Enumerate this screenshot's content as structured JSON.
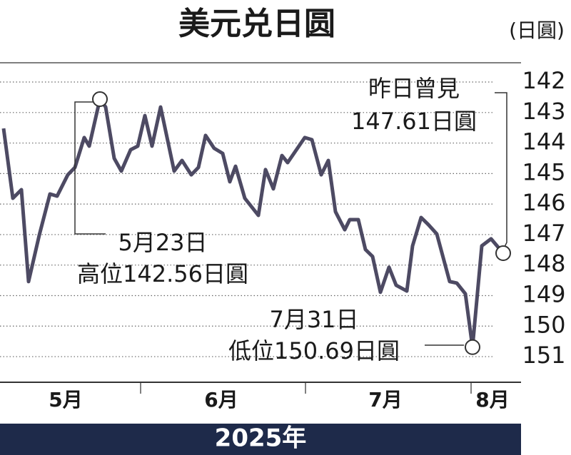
{
  "chart_data": {
    "type": "line",
    "title": "美元兑日圆",
    "unit": "(日圓)",
    "xlabel": "2025年",
    "x": [
      5,
      18,
      30,
      40,
      55,
      70,
      80,
      95,
      105,
      118,
      125,
      140,
      148,
      160,
      170,
      183,
      193,
      203,
      213,
      225,
      244,
      255,
      268,
      278,
      288,
      300,
      312,
      322,
      330,
      343,
      362,
      372,
      383,
      395,
      403,
      427,
      437,
      450,
      460,
      470,
      483,
      490,
      502,
      512,
      522,
      533,
      545,
      555,
      570,
      578,
      590,
      600,
      612,
      630,
      640,
      652,
      662,
      675,
      688,
      705
    ],
    "series": [
      {
        "name": "美元兑日圆",
        "color": "#4d4a63",
        "values": [
          143.52,
          145.81,
          145.53,
          148.54,
          147.02,
          145.67,
          145.74,
          145.04,
          144.8,
          143.82,
          144.1,
          142.56,
          142.82,
          144.5,
          144.92,
          144.22,
          144.1,
          143.1,
          144.1,
          142.82,
          144.92,
          144.57,
          145.04,
          144.8,
          143.75,
          144.17,
          144.34,
          145.27,
          144.76,
          145.81,
          146.37,
          144.87,
          145.5,
          144.41,
          144.64,
          143.82,
          143.89,
          145.04,
          144.57,
          146.25,
          146.84,
          146.51,
          146.51,
          147.49,
          147.72,
          148.89,
          148.07,
          148.66,
          148.85,
          147.37,
          146.44,
          146.67,
          146.98,
          148.54,
          148.59,
          148.94,
          150.69,
          147.37,
          147.14,
          147.61
        ]
      }
    ],
    "xlim": [
      0,
      720
    ],
    "xticks": [
      {
        "value": 92,
        "label": "5月"
      },
      {
        "value": 310,
        "label": "6月"
      },
      {
        "value": 540,
        "label": "7月"
      },
      {
        "value": 690,
        "label": "8月"
      }
    ],
    "xminorticks": [
      197,
      428,
      660
    ],
    "ylim": [
      141.45,
      151.85
    ],
    "yticks": [
      142,
      143,
      144,
      145,
      146,
      147,
      148,
      149,
      150,
      151
    ],
    "yinverted": true,
    "grid": true,
    "annotations": [
      {
        "index": 11,
        "text": [
          "5月23日",
          "高位142.56日圓"
        ]
      },
      {
        "index": 56,
        "text": [
          "7月31日",
          "低位150.69日圓"
        ]
      },
      {
        "index": 59,
        "text": [
          "昨日曾見",
          "147.61日圓"
        ]
      }
    ]
  }
}
